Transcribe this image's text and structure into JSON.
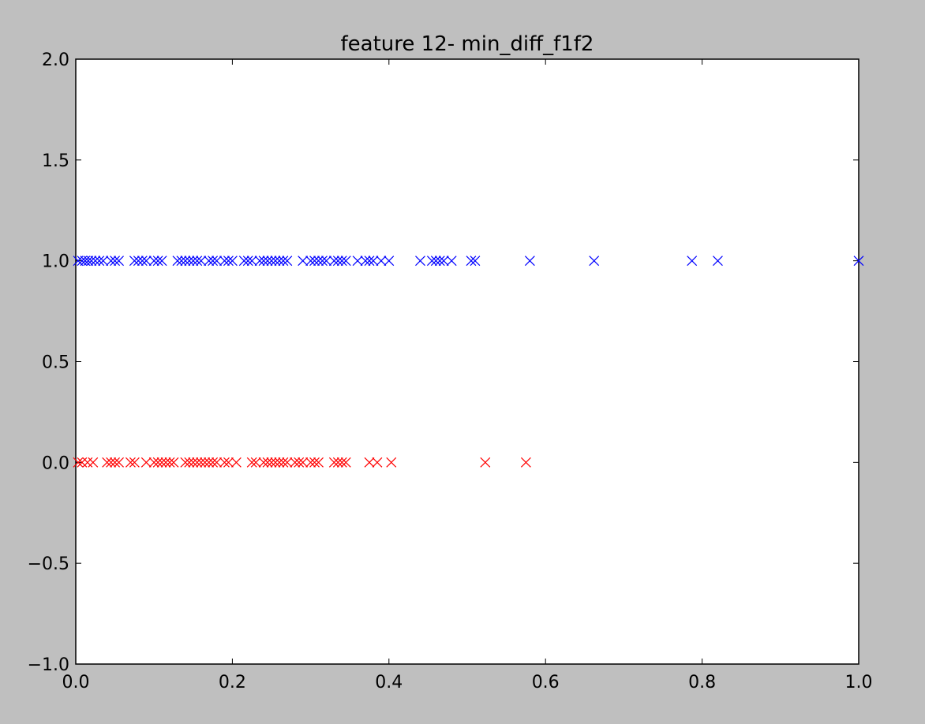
{
  "chart_data": {
    "type": "scatter",
    "title": "feature 12- min_diff_f1f2",
    "xlabel": "",
    "ylabel": "",
    "xlim": [
      0.0,
      1.0
    ],
    "ylim": [
      -1.0,
      2.0
    ],
    "x_ticks": [
      "0.0",
      "0.2",
      "0.4",
      "0.6",
      "0.8",
      "1.0"
    ],
    "y_ticks": [
      "−1.0",
      "−0.5",
      "0.0",
      "0.5",
      "1.0",
      "1.5",
      "2.0"
    ],
    "grid": false,
    "marker": "x",
    "series": [
      {
        "color": "#0000ff",
        "y": 1.0,
        "x": [
          0.003,
          0.008,
          0.012,
          0.016,
          0.02,
          0.025,
          0.03,
          0.035,
          0.045,
          0.05,
          0.055,
          0.075,
          0.08,
          0.085,
          0.09,
          0.1,
          0.105,
          0.11,
          0.13,
          0.135,
          0.14,
          0.145,
          0.15,
          0.155,
          0.16,
          0.17,
          0.175,
          0.18,
          0.19,
          0.195,
          0.2,
          0.215,
          0.22,
          0.225,
          0.235,
          0.24,
          0.245,
          0.25,
          0.255,
          0.26,
          0.265,
          0.27,
          0.29,
          0.3,
          0.305,
          0.31,
          0.315,
          0.32,
          0.33,
          0.335,
          0.34,
          0.345,
          0.36,
          0.37,
          0.375,
          0.38,
          0.39,
          0.4,
          0.44,
          0.455,
          0.46,
          0.465,
          0.47,
          0.48,
          0.505,
          0.51,
          0.58,
          0.662,
          0.787,
          0.82,
          1.0
        ]
      },
      {
        "color": "#ff0000",
        "y": 0.0,
        "x": [
          0.003,
          0.008,
          0.015,
          0.022,
          0.04,
          0.045,
          0.05,
          0.055,
          0.07,
          0.075,
          0.09,
          0.1,
          0.105,
          0.11,
          0.115,
          0.12,
          0.125,
          0.14,
          0.145,
          0.15,
          0.155,
          0.16,
          0.165,
          0.17,
          0.175,
          0.18,
          0.19,
          0.195,
          0.205,
          0.225,
          0.23,
          0.24,
          0.245,
          0.25,
          0.255,
          0.26,
          0.265,
          0.27,
          0.28,
          0.285,
          0.29,
          0.3,
          0.305,
          0.31,
          0.33,
          0.335,
          0.34,
          0.345,
          0.375,
          0.385,
          0.403,
          0.523,
          0.575
        ]
      }
    ]
  }
}
